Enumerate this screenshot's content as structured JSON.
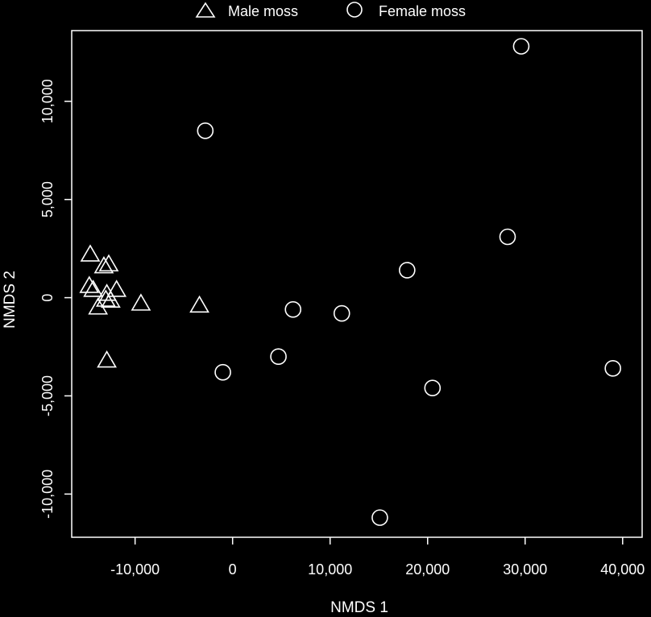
{
  "chart_data": {
    "type": "scatter",
    "title": "",
    "xlabel": "NMDS 1",
    "ylabel": "NMDS 2",
    "xlim": [
      -16500,
      42000
    ],
    "ylim": [
      -12200,
      13600
    ],
    "x_ticks": [
      -10000,
      0,
      10000,
      20000,
      30000,
      40000
    ],
    "x_tick_labels": [
      "-10,000",
      "0",
      "10,000",
      "20,000",
      "30,000",
      "40,000"
    ],
    "y_ticks": [
      -10000,
      -5000,
      0,
      5000,
      10000
    ],
    "y_tick_labels": [
      "-10,000",
      "-5,000",
      "0",
      "5,000",
      "10,000"
    ],
    "grid": false,
    "legend_position": "top",
    "colors": {
      "background": "#000000",
      "foreground": "#ffffff"
    },
    "series": [
      {
        "name": "Male moss",
        "marker": "triangle",
        "points": [
          {
            "x": -14600,
            "y": 2200
          },
          {
            "x": -12700,
            "y": 1700
          },
          {
            "x": -13200,
            "y": 1600
          },
          {
            "x": -14700,
            "y": 600
          },
          {
            "x": -14300,
            "y": 400
          },
          {
            "x": -11900,
            "y": 400
          },
          {
            "x": -12900,
            "y": 200
          },
          {
            "x": -13000,
            "y": -100
          },
          {
            "x": -12500,
            "y": -150
          },
          {
            "x": -13800,
            "y": -500
          },
          {
            "x": -9400,
            "y": -300
          },
          {
            "x": -3400,
            "y": -400
          },
          {
            "x": -12900,
            "y": -3200
          }
        ]
      },
      {
        "name": "Female moss",
        "marker": "circle",
        "points": [
          {
            "x": 29600,
            "y": 12800
          },
          {
            "x": -2800,
            "y": 8500
          },
          {
            "x": 28200,
            "y": 3100
          },
          {
            "x": 17900,
            "y": 1400
          },
          {
            "x": 6200,
            "y": -600
          },
          {
            "x": 11200,
            "y": -800
          },
          {
            "x": 4700,
            "y": -3000
          },
          {
            "x": -1000,
            "y": -3800
          },
          {
            "x": 20500,
            "y": -4600
          },
          {
            "x": 39000,
            "y": -3600
          },
          {
            "x": 15100,
            "y": -11200
          }
        ]
      }
    ]
  }
}
